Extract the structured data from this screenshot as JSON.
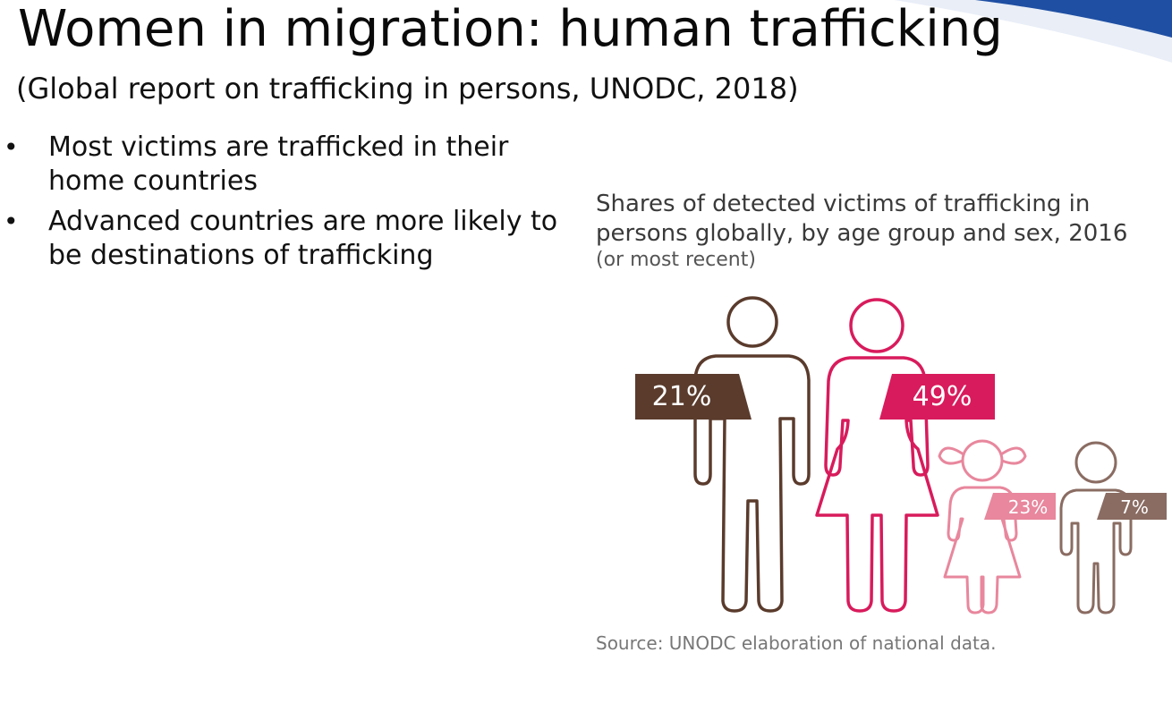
{
  "slide": {
    "title": "Women in migration: human trafficking",
    "subtitle": "(Global report on trafficking in persons, UNODC, 2018)",
    "bullets": [
      "Most victims are trafficked in their home countries",
      "Advanced countries are more likely to be destinations of trafficking"
    ],
    "bullet_marker": "•"
  },
  "infographic": {
    "title": "Shares of detected victims of trafficking in persons globally, by age group and sex,",
    "year": "2016",
    "note": "(or most recent)",
    "source": "Source: UNODC elaboration of national data.",
    "groups": [
      {
        "label": "21%",
        "share": 21,
        "color": "#5a3b2c",
        "icon": "man-icon"
      },
      {
        "label": "49%",
        "share": 49,
        "color": "#d81b5c",
        "icon": "woman-icon"
      },
      {
        "label": "23%",
        "share": 23,
        "color": "#e8879d",
        "icon": "girl-icon"
      },
      {
        "label": "7%",
        "share": 7,
        "color": "#8a6c62",
        "icon": "boy-icon"
      }
    ]
  },
  "colors": {
    "brand_blue": "#1f4fa3"
  }
}
